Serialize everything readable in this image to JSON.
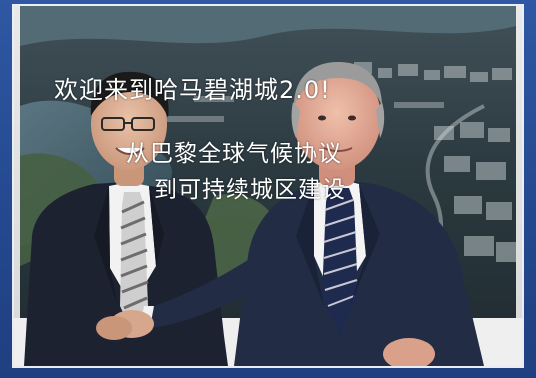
{
  "screen": {
    "line1": "欢迎来到哈马碧湖城2.0!",
    "line2": "从巴黎全球气候协议",
    "line3": "到可持续城区建设"
  },
  "colors": {
    "frame_blue": "#2f57a3",
    "screen_dark": "#1c2a33",
    "suit_dark": "#1d2230",
    "suit_navy": "#222c44",
    "shirt_white": "#f2f2f2",
    "skin": "#e3b8a0"
  }
}
